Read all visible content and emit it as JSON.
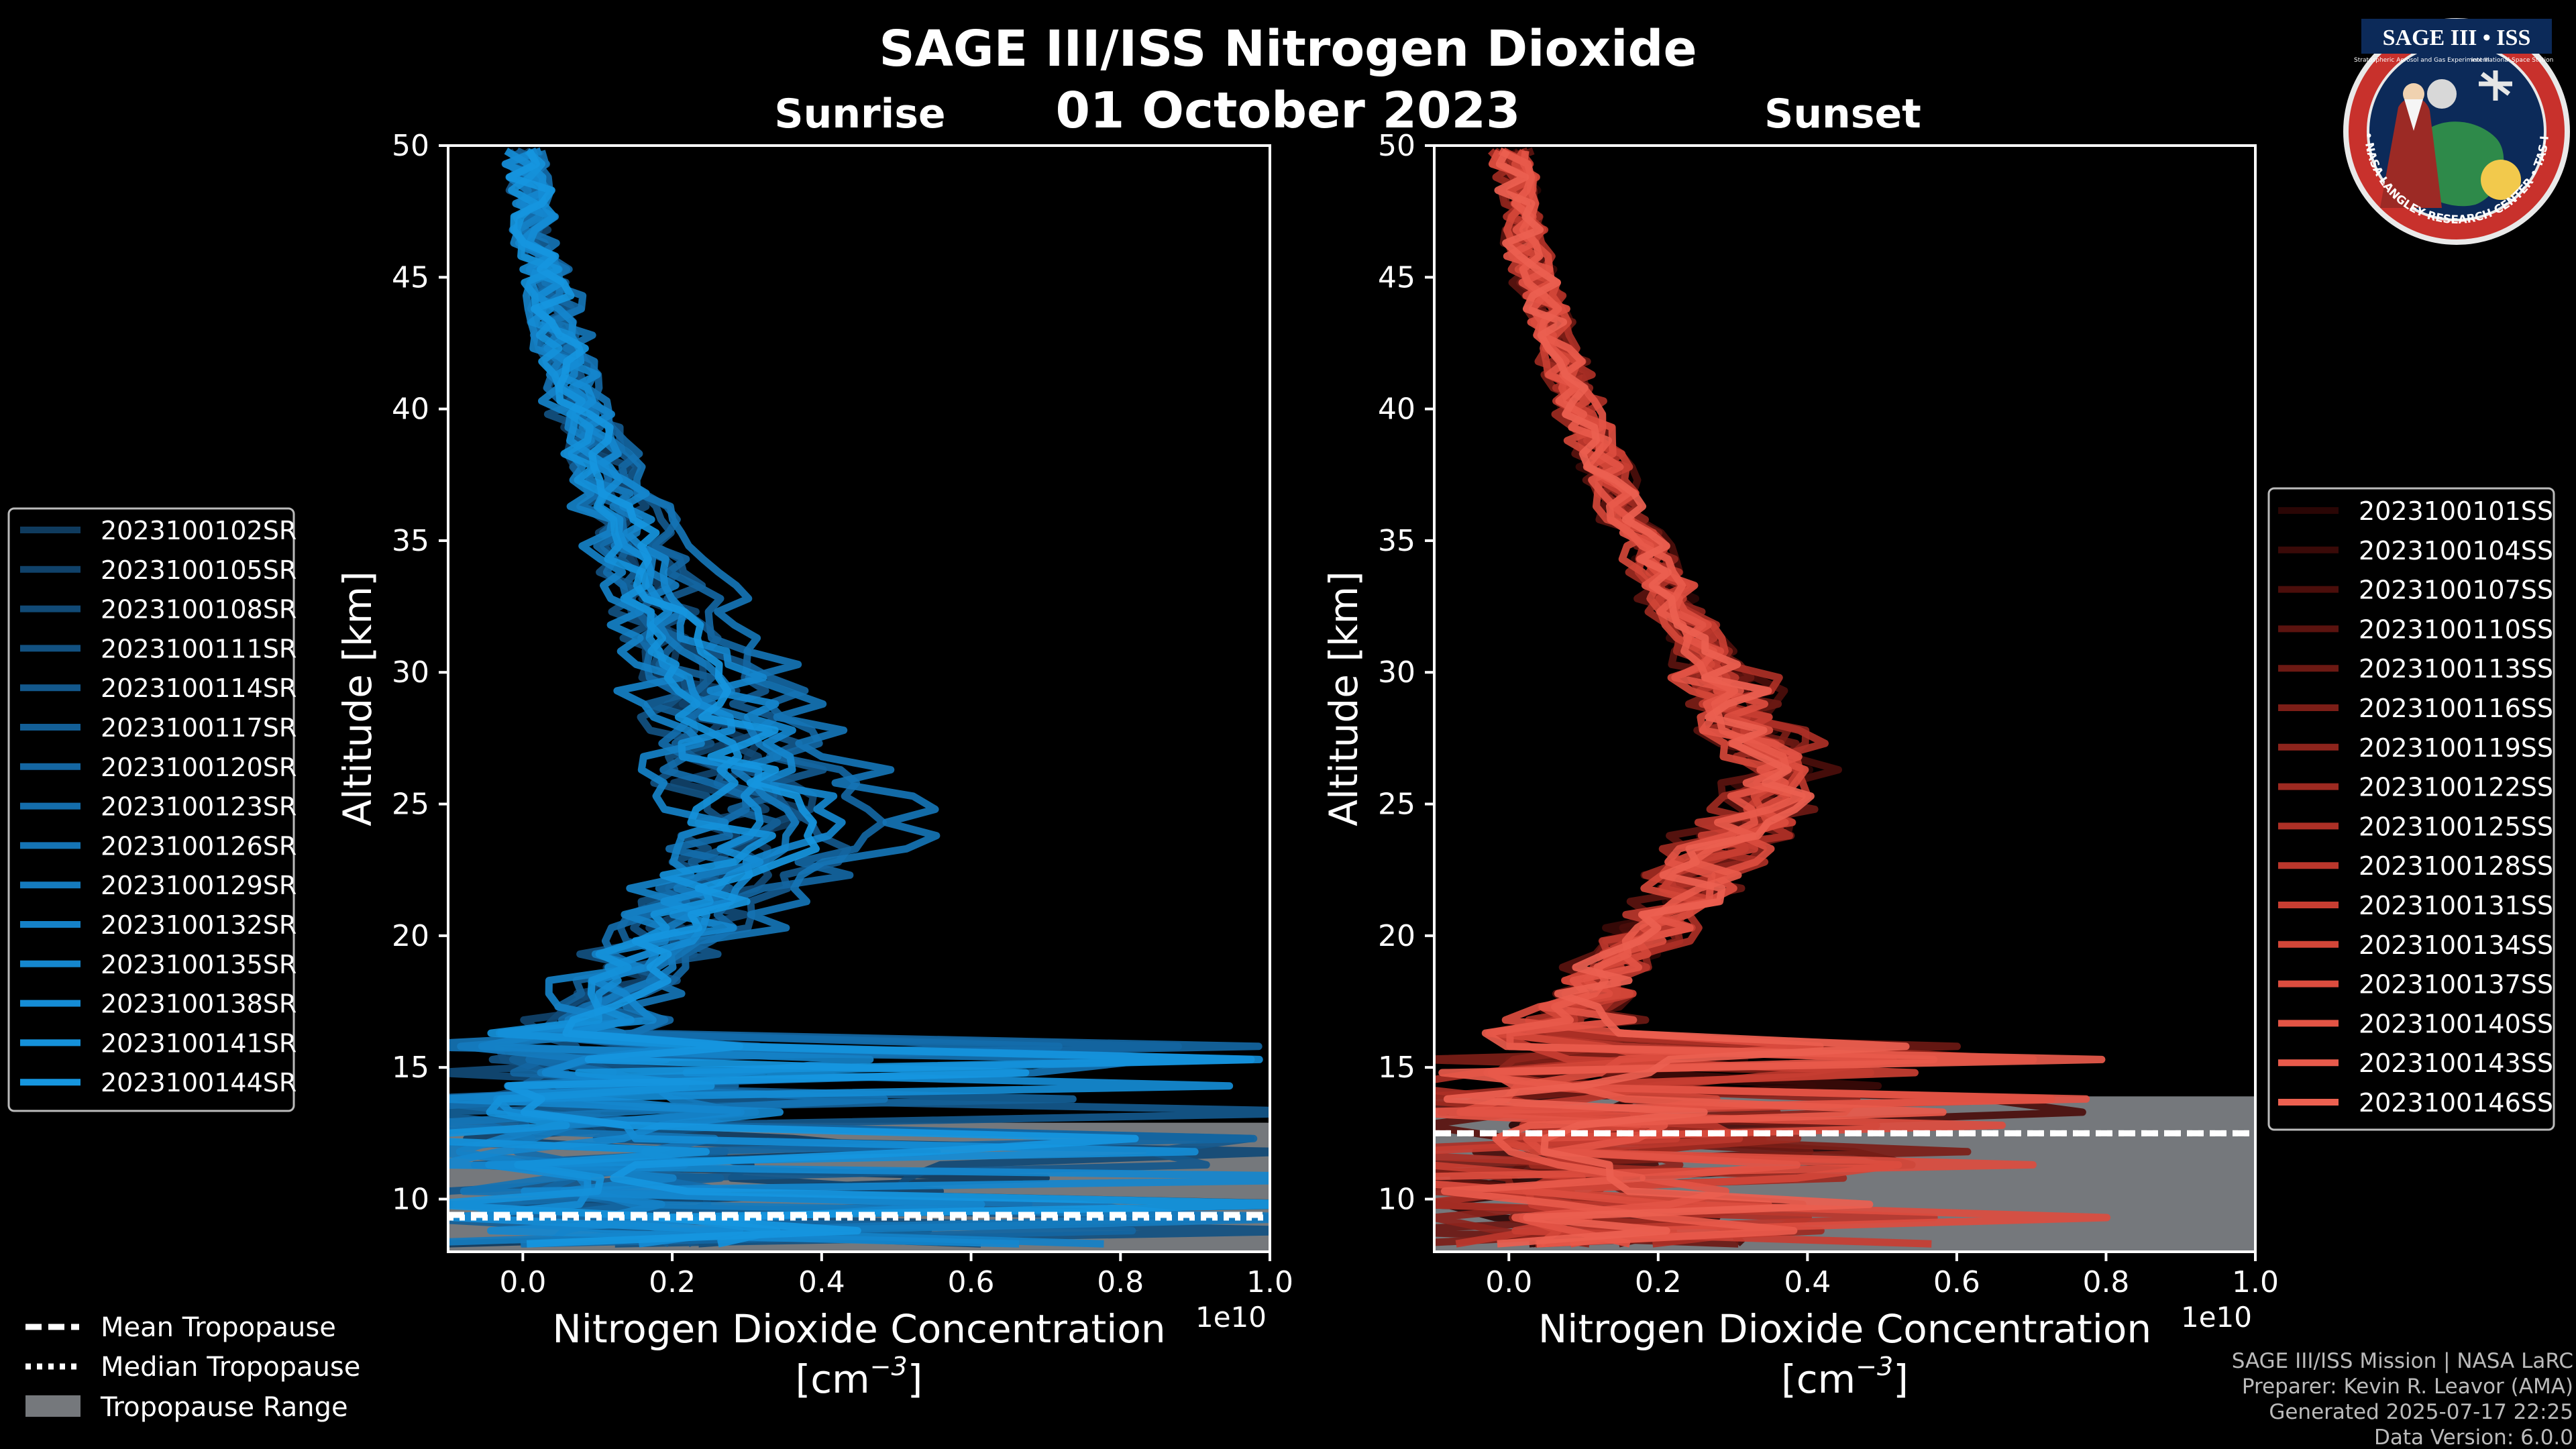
{
  "title": "SAGE III/ISS Nitrogen Dioxide",
  "date": "01 October 2023",
  "colors": {
    "background": "#000000",
    "tropopause_fill": "#75787c",
    "axis": "#ffffff"
  },
  "badge": {
    "title": "SAGE III • ISS",
    "subtitle": "Stratospheric Aerosol and Gas Experiment III",
    "iss_text": "International Space Station",
    "ring_text": "BALL • NASA LANGLEY RESEARCH CENTER • TAS-I • ESA"
  },
  "footer": {
    "line1": "SAGE III/ISS Mission | NASA LaRC",
    "line2": "Preparer: Kevin R. Leavor (AMA)",
    "line3": "Generated 2025-07-17 22:25",
    "line4": "Data Version: 6.0.0"
  },
  "tropopause_legend": {
    "mean": "Mean Tropopause",
    "median": "Median Tropopause",
    "range": "Tropopause Range"
  },
  "chart_data": [
    {
      "type": "line",
      "title": "Sunrise",
      "xlabel": "Nitrogen Dioxide Concentration",
      "xunit": "[cm",
      "xunit_exp": "−3",
      "xunit_close": "]",
      "ylabel": "Altitude [km]",
      "xlim": [
        -0.1,
        1.0
      ],
      "ylim": [
        8,
        50
      ],
      "x_scale_label": "1e10",
      "xticks": [
        0.0,
        0.2,
        0.4,
        0.6,
        0.8,
        1.0
      ],
      "xtick_labels": [
        "0.0",
        "0.2",
        "0.4",
        "0.6",
        "0.8",
        "1.0"
      ],
      "yticks": [
        10,
        15,
        20,
        25,
        30,
        35,
        40,
        45,
        50
      ],
      "ytick_labels": [
        "10",
        "15",
        "20",
        "25",
        "30",
        "35",
        "40",
        "45",
        "50"
      ],
      "tropopause": {
        "mean": 9.4,
        "median": 9.3,
        "range": [
          8.0,
          12.9
        ]
      },
      "profile_shape": {
        "peak_altitude": 24,
        "peak_value": 0.3,
        "value_at_50": 0.0
      },
      "series": [
        {
          "name": "2023100102SR",
          "color": "#0f3b5e",
          "peak_scale": 1.1
        },
        {
          "name": "2023100105SR",
          "color": "#10426a",
          "peak_scale": 0.95
        },
        {
          "name": "2023100108SR",
          "color": "#114a76",
          "peak_scale": 1.25
        },
        {
          "name": "2023100111SR",
          "color": "#125181",
          "peak_scale": 0.85
        },
        {
          "name": "2023100114SR",
          "color": "#13588c",
          "peak_scale": 1.4
        },
        {
          "name": "2023100117SR",
          "color": "#135f97",
          "peak_scale": 1.0
        },
        {
          "name": "2023100120SR",
          "color": "#1466a2",
          "peak_scale": 1.55
        },
        {
          "name": "2023100123SR",
          "color": "#146dab",
          "peak_scale": 0.9
        },
        {
          "name": "2023100126SR",
          "color": "#1574b5",
          "peak_scale": 1.75
        },
        {
          "name": "2023100129SR",
          "color": "#157bbe",
          "peak_scale": 1.15
        },
        {
          "name": "2023100132SR",
          "color": "#1581c7",
          "peak_scale": 0.8
        },
        {
          "name": "2023100135SR",
          "color": "#1587ce",
          "peak_scale": 1.3
        },
        {
          "name": "2023100138SR",
          "color": "#158cd5",
          "peak_scale": 1.05
        },
        {
          "name": "2023100141SR",
          "color": "#1591da",
          "peak_scale": 0.95
        },
        {
          "name": "2023100144SR",
          "color": "#1696df",
          "peak_scale": 1.2
        }
      ]
    },
    {
      "type": "line",
      "title": "Sunset",
      "xlabel": "Nitrogen Dioxide Concentration",
      "xunit": "[cm",
      "xunit_exp": "−3",
      "xunit_close": "]",
      "ylabel": "Altitude [km]",
      "xlim": [
        -0.1,
        1.0
      ],
      "ylim": [
        8,
        50
      ],
      "x_scale_label": "1e10",
      "xticks": [
        0.0,
        0.2,
        0.4,
        0.6,
        0.8,
        1.0
      ],
      "xtick_labels": [
        "0.0",
        "0.2",
        "0.4",
        "0.6",
        "0.8",
        "1.0"
      ],
      "yticks": [
        10,
        15,
        20,
        25,
        30,
        35,
        40,
        45,
        50
      ],
      "ytick_labels": [
        "10",
        "15",
        "20",
        "25",
        "30",
        "35",
        "40",
        "45",
        "50"
      ],
      "tropopause": {
        "mean": 12.5,
        "median": 12.5,
        "range": [
          8.0,
          13.9
        ]
      },
      "profile_shape": {
        "peak_altitude": 26,
        "peak_value": 0.37,
        "value_at_50": 0.0
      },
      "series": [
        {
          "name": "2023100101SS",
          "color": "#2a0605",
          "peak_scale": 1.0
        },
        {
          "name": "2023100104SS",
          "color": "#3a0a08",
          "peak_scale": 0.95
        },
        {
          "name": "2023100107SS",
          "color": "#4b0e0b",
          "peak_scale": 1.05
        },
        {
          "name": "2023100110SS",
          "color": "#5b130f",
          "peak_scale": 0.9
        },
        {
          "name": "2023100113SS",
          "color": "#6c1913",
          "peak_scale": 1.08
        },
        {
          "name": "2023100116SS",
          "color": "#7c1e17",
          "peak_scale": 0.97
        },
        {
          "name": "2023100119SS",
          "color": "#8d241c",
          "peak_scale": 1.03
        },
        {
          "name": "2023100122SS",
          "color": "#9d2a21",
          "peak_scale": 0.92
        },
        {
          "name": "2023100125SS",
          "color": "#ad3026",
          "peak_scale": 1.06
        },
        {
          "name": "2023100128SS",
          "color": "#bb372c",
          "peak_scale": 0.98
        },
        {
          "name": "2023100131SS",
          "color": "#c83e32",
          "peak_scale": 1.02
        },
        {
          "name": "2023100134SS",
          "color": "#d34638",
          "peak_scale": 0.94
        },
        {
          "name": "2023100137SS",
          "color": "#dc4d3f",
          "peak_scale": 1.04
        },
        {
          "name": "2023100140SS",
          "color": "#e35445",
          "peak_scale": 0.96
        },
        {
          "name": "2023100143SS",
          "color": "#e85a4b",
          "peak_scale": 1.0
        },
        {
          "name": "2023100146SS",
          "color": "#ec6050",
          "peak_scale": 1.01
        }
      ]
    }
  ]
}
